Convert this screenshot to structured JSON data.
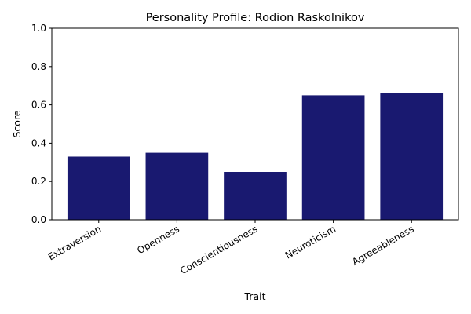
{
  "chart_data": {
    "type": "bar",
    "title": "Personality Profile: Rodion Raskolnikov",
    "xlabel": "Trait",
    "ylabel": "Score",
    "categories": [
      "Extraversion",
      "Openness",
      "Conscientiousness",
      "Neuroticism",
      "Agreeableness"
    ],
    "values": [
      0.33,
      0.35,
      0.25,
      0.65,
      0.66
    ],
    "ylim": [
      0,
      1.0
    ],
    "yticks": [
      "0.0",
      "0.2",
      "0.4",
      "0.6",
      "0.8",
      "1.0"
    ],
    "bar_color": "#191970",
    "grid": false,
    "legend": "none"
  }
}
